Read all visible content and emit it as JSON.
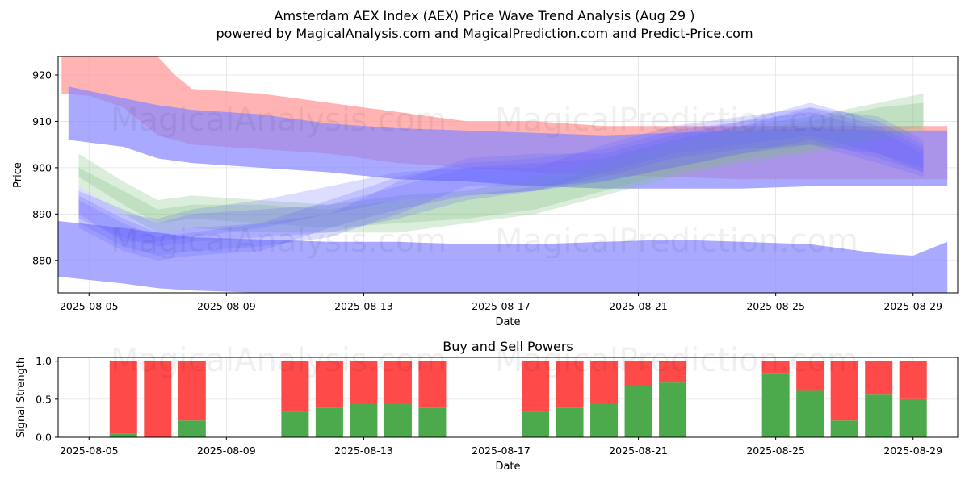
{
  "colors": {
    "buy": "#4caa4c",
    "sell": "#ff4a4a",
    "upper_band": "#ff9999",
    "lower_band": "#8888ff",
    "wave_green": "#7fbf7f",
    "wave_blue": "#6666ff"
  },
  "title": {
    "line1": "Amsterdam AEX Index (AEX) Price Wave Trend Analysis (Aug 29 )",
    "line2": "powered by MagicalAnalysis.com and MagicalPrediction.com and Predict-Price.com"
  },
  "watermarks": {
    "left": "MagicalAnalysis.com",
    "right": "MagicalPrediction.com"
  },
  "chart_data": [
    {
      "type": "area",
      "title": "",
      "xlabel": "Date",
      "ylabel": "Price",
      "xlim": [
        -0.9,
        25.3
      ],
      "ylim": [
        873,
        924
      ],
      "x_ticks": [
        0,
        4,
        8,
        12,
        16,
        20,
        24
      ],
      "x_tick_labels": [
        "2025-08-05",
        "2025-08-09",
        "2025-08-13",
        "2025-08-17",
        "2025-08-21",
        "2025-08-25",
        "2025-08-29"
      ],
      "y_ticks": [
        880,
        890,
        900,
        910,
        920
      ],
      "grid": true,
      "bands": [
        {
          "name": "upper",
          "x": [
            -0.8,
            0,
            1,
            2,
            2.5,
            3,
            5,
            7,
            9,
            11,
            13,
            15,
            17,
            19,
            21,
            23,
            24,
            25
          ],
          "upper": [
            925,
            925,
            925,
            924,
            920,
            917,
            916,
            914,
            912,
            910,
            910,
            909,
            909,
            909,
            909,
            909,
            909,
            909
          ],
          "lower": [
            916,
            915.5,
            913,
            907,
            906,
            905,
            904,
            903,
            901,
            900,
            899,
            898.5,
            898,
            897.5,
            897.5,
            897.5,
            897.5,
            897.5
          ]
        },
        {
          "name": "mid",
          "x": [
            -0.6,
            1,
            2,
            3,
            5,
            7,
            9,
            11,
            13,
            15,
            17,
            19,
            21,
            23,
            25
          ],
          "upper": [
            917.5,
            915,
            913.5,
            912.5,
            911.5,
            909.5,
            908.5,
            908,
            907.5,
            907,
            907.5,
            908,
            908.5,
            908,
            908
          ],
          "lower": [
            906,
            904.5,
            902,
            901,
            900,
            899,
            897.5,
            897,
            896,
            895.5,
            895.5,
            895.5,
            896,
            896,
            896
          ]
        },
        {
          "name": "lower",
          "x": [
            -0.9,
            1,
            2,
            3,
            5,
            7,
            9,
            11,
            13,
            15,
            17,
            19,
            21,
            23,
            24,
            25
          ],
          "upper": [
            888.5,
            887,
            886,
            885,
            884.5,
            884,
            884,
            883.5,
            883.5,
            884,
            884.5,
            884,
            883.5,
            881.5,
            881,
            884
          ],
          "lower": [
            876.5,
            875,
            874,
            873.5,
            873,
            873,
            873,
            873,
            873,
            873,
            873,
            873,
            873,
            873,
            873,
            873
          ]
        }
      ],
      "waves": [
        {
          "color": "green",
          "x": [
            -0.3,
            1,
            2,
            3,
            5,
            7,
            9,
            11,
            13,
            15,
            17,
            19,
            21,
            23,
            24.3
          ],
          "upper": [
            903,
            897,
            893,
            894,
            893,
            892,
            894,
            895,
            898,
            902,
            906,
            909,
            911,
            914,
            916
          ],
          "lower": [
            898,
            892,
            888,
            889,
            888,
            887,
            888,
            889,
            891,
            895,
            899,
            902,
            904,
            907,
            909
          ]
        },
        {
          "color": "green",
          "x": [
            -0.3,
            1,
            2,
            3,
            5,
            7,
            9,
            11,
            13,
            15,
            17,
            19,
            21,
            23,
            24.3
          ],
          "upper": [
            900,
            895,
            891,
            892,
            892,
            891,
            893,
            894,
            896,
            900,
            905,
            908,
            910,
            913,
            914
          ],
          "lower": [
            896,
            890,
            886,
            887,
            886,
            886,
            886,
            888,
            890,
            894,
            898,
            901,
            903,
            906,
            908
          ]
        },
        {
          "color": "blue",
          "x": [
            -0.3,
            1,
            2,
            3,
            5,
            7,
            9,
            11,
            13,
            15,
            17,
            19,
            21,
            23,
            24.3
          ],
          "upper": [
            895,
            891,
            888,
            890,
            891,
            892,
            896,
            900,
            901,
            902,
            906,
            909,
            913,
            911,
            906
          ],
          "lower": [
            889,
            885,
            883,
            884,
            885,
            886,
            889,
            893,
            895,
            897,
            900,
            903,
            905,
            903,
            900
          ]
        },
        {
          "color": "blue",
          "x": [
            -0.3,
            1,
            2,
            3,
            5,
            7,
            9,
            11,
            13,
            15,
            17,
            19,
            21,
            23,
            24.3
          ],
          "upper": [
            894,
            889,
            886,
            887,
            888,
            890,
            897,
            902,
            903,
            903,
            907,
            910,
            914,
            910,
            905
          ],
          "lower": [
            888,
            883,
            881,
            882,
            883,
            885,
            890,
            896,
            896,
            897,
            900,
            903,
            906,
            902,
            899
          ]
        },
        {
          "color": "blue",
          "x": [
            -0.3,
            1,
            2,
            3,
            5,
            7,
            9,
            11,
            13,
            15,
            17,
            19,
            21,
            23,
            24.3
          ],
          "upper": [
            893,
            888,
            885,
            886,
            888,
            893,
            898,
            901,
            902,
            904,
            908,
            910,
            912,
            908,
            903
          ],
          "lower": [
            887,
            882,
            880,
            881,
            882,
            887,
            891,
            894,
            895,
            898,
            902,
            904,
            905,
            901,
            898
          ]
        },
        {
          "color": "blue",
          "x": [
            -0.3,
            1,
            2,
            3,
            5,
            7,
            9,
            11,
            13,
            15,
            17,
            19,
            21,
            23,
            24.3
          ],
          "upper": [
            896,
            890,
            889,
            891,
            893,
            896,
            899,
            900,
            900,
            905,
            909,
            911,
            913,
            909,
            904
          ],
          "lower": [
            890,
            884,
            884,
            885,
            887,
            890,
            893,
            894,
            895,
            899,
            903,
            905,
            907,
            903,
            899
          ]
        }
      ]
    },
    {
      "type": "bar",
      "title": "Buy and Sell Powers",
      "xlabel": "Date",
      "ylabel": "Signal Strength",
      "xlim": [
        -0.9,
        25.3
      ],
      "ylim": [
        0,
        1.05
      ],
      "x_ticks": [
        0,
        4,
        8,
        12,
        16,
        20,
        24
      ],
      "x_tick_labels": [
        "2025-08-05",
        "2025-08-09",
        "2025-08-13",
        "2025-08-17",
        "2025-08-21",
        "2025-08-25",
        "2025-08-29"
      ],
      "y_ticks": [
        0.0,
        0.5,
        1.0
      ],
      "y_tick_labels": [
        "0.0",
        "0.5",
        "1.0"
      ],
      "grid": true,
      "x": [
        1,
        2,
        3,
        6,
        7,
        8,
        9,
        10,
        13,
        14,
        15,
        16,
        17,
        20,
        21,
        22,
        23,
        24
      ],
      "series": [
        {
          "name": "Buy",
          "values": [
            0.05,
            0.0,
            0.22,
            0.33,
            0.39,
            0.45,
            0.45,
            0.39,
            0.33,
            0.39,
            0.45,
            0.67,
            0.72,
            0.83,
            0.61,
            0.22,
            0.56,
            0.5
          ]
        },
        {
          "name": "Sell",
          "values": [
            0.95,
            1.0,
            0.78,
            0.67,
            0.61,
            0.55,
            0.55,
            0.61,
            0.67,
            0.61,
            0.55,
            0.33,
            0.28,
            0.17,
            0.39,
            0.78,
            0.44,
            0.5
          ]
        }
      ]
    }
  ]
}
